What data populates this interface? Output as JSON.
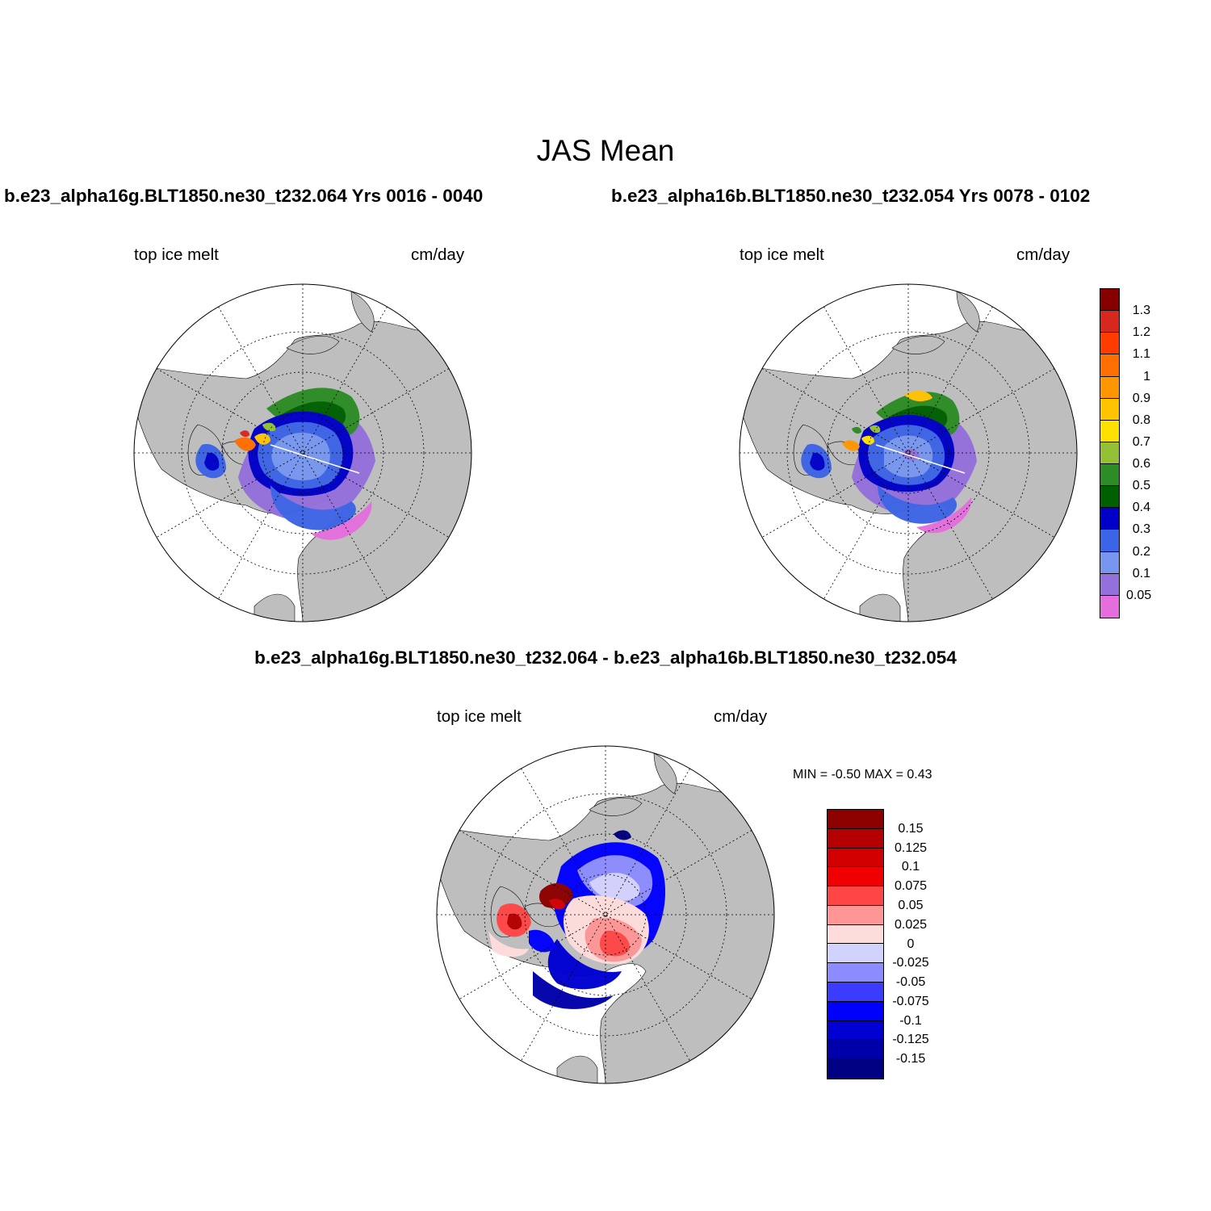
{
  "title": "JAS Mean",
  "panels": [
    {
      "title": "b.e23_alpha16g.BLT1850.ne30_t232.064  Yrs 0016 - 0040",
      "variable": "top ice melt",
      "units": "cm/day"
    },
    {
      "title": "b.e23_alpha16b.BLT1850.ne30_t232.054  Yrs 0078 - 0102",
      "variable": "top ice melt",
      "units": "cm/day"
    },
    {
      "title": "b.e23_alpha16g.BLT1850.ne30_t232.064 - b.e23_alpha16b.BLT1850.ne30_t232.054",
      "variable": "top ice melt",
      "units": "cm/day"
    }
  ],
  "diff_stats": "MIN =  -0.50 MAX =   0.43",
  "colorbar_main": {
    "labels": [
      "1.3",
      "1.2",
      "1.1",
      "1",
      "0.9",
      "0.8",
      "0.7",
      "0.6",
      "0.5",
      "0.4",
      "0.3",
      "0.2",
      "0.1",
      "0.05"
    ],
    "colors": [
      "#870000",
      "#d7281e",
      "#ff3c00",
      "#ff6e00",
      "#ff9600",
      "#ffc300",
      "#ffe100",
      "#94c035",
      "#2d8c25",
      "#005f00",
      "#0000c8",
      "#3c64e6",
      "#7896f0",
      "#9370db",
      "#e46fdc"
    ]
  },
  "colorbar_diff": {
    "labels": [
      "0.15",
      "0.125",
      "0.1",
      "0.075",
      "0.05",
      "0.025",
      "0",
      "-0.025",
      "-0.05",
      "-0.075",
      "-0.1",
      "-0.125",
      "-0.15"
    ],
    "colors": [
      "#8c0000",
      "#b40000",
      "#d20000",
      "#f00000",
      "#ff4646",
      "#ff9696",
      "#ffdcdc",
      "#d2d2ff",
      "#8c8cff",
      "#3c3cff",
      "#0000ff",
      "#0000d2",
      "#0000aa",
      "#000082"
    ]
  }
}
